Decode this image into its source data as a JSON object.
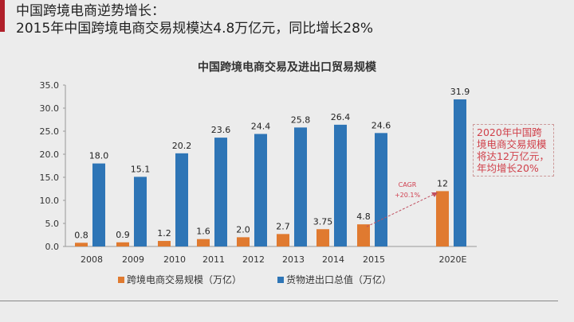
{
  "header": {
    "line1": "中国跨境电商逆势增长：",
    "line2": "2015年中国跨境电商交易规模达4.8万亿元，同比增长28%"
  },
  "note": "2020年中国跨境电商交易规模将达12万亿元，年均增长20%",
  "cagr": {
    "label": "CAGR",
    "value": "+20.1%"
  },
  "chart_data": {
    "type": "bar",
    "title": "中国跨境电商交易及进出口贸易规模",
    "categories": [
      "2008",
      "2009",
      "2010",
      "2011",
      "2012",
      "2013",
      "2014",
      "2015",
      "2020E"
    ],
    "series": [
      {
        "name": "跨境电商交易规模（万亿）",
        "color": "#e07a30",
        "values": [
          0.8,
          0.9,
          1.2,
          1.6,
          2.0,
          2.7,
          3.75,
          4.8,
          12
        ],
        "labels": [
          "0.8",
          "0.9",
          "1.2",
          "1.6",
          "2.0",
          "2.7",
          "3.75",
          "4.8",
          "12"
        ]
      },
      {
        "name": "货物进出口总值（万亿）",
        "color": "#2e75b6",
        "values": [
          18.0,
          15.1,
          20.2,
          23.6,
          24.4,
          25.8,
          26.4,
          24.6,
          31.9
        ],
        "labels": [
          "18.0",
          "15.1",
          "20.2",
          "23.6",
          "24.4",
          "25.8",
          "26.4",
          "24.6",
          "31.9"
        ]
      }
    ],
    "ylim": [
      0,
      35
    ],
    "yticks": [
      "0.0",
      "5.0",
      "10.0",
      "15.0",
      "20.0",
      "25.0",
      "30.0",
      "35.0"
    ],
    "grid": false,
    "legend": "bottom"
  }
}
